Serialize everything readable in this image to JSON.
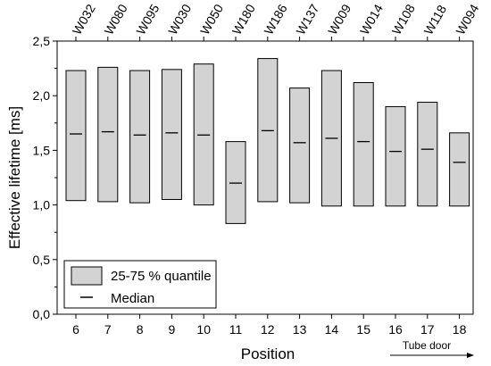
{
  "chart_data": {
    "type": "box",
    "xlabel": "Position",
    "ylabel": "Effective lifetime [ms]",
    "ylim": [
      0.0,
      2.5
    ],
    "yticks": [
      "0,0",
      "0,5",
      "1,0",
      "1,5",
      "2,0",
      "2,5"
    ],
    "ytick_values": [
      0.0,
      0.5,
      1.0,
      1.5,
      2.0,
      2.5
    ],
    "positions": [
      6,
      7,
      8,
      9,
      10,
      11,
      12,
      13,
      14,
      15,
      16,
      17,
      18
    ],
    "top_labels": [
      "W032",
      "W080",
      "W095",
      "W030",
      "W050",
      "W180",
      "W186",
      "W137",
      "W009",
      "W014",
      "W108",
      "W118",
      "W094"
    ],
    "q25": [
      1.04,
      1.03,
      1.02,
      1.05,
      1.0,
      0.83,
      1.03,
      1.02,
      0.99,
      0.99,
      0.99,
      0.99,
      0.99
    ],
    "q75": [
      2.23,
      2.26,
      2.23,
      2.24,
      2.29,
      1.58,
      2.34,
      2.07,
      2.23,
      2.12,
      1.9,
      1.94,
      1.66
    ],
    "median": [
      1.65,
      1.67,
      1.64,
      1.66,
      1.64,
      1.2,
      1.68,
      1.57,
      1.61,
      1.58,
      1.49,
      1.51,
      1.39
    ],
    "legend": {
      "box_label": "25-75 % quantile",
      "median_label": "Median",
      "placement": "bottom-left"
    },
    "annotation": "Tube door",
    "colors": {
      "box_fill": "#d3d3d3",
      "stroke": "#000000"
    }
  }
}
